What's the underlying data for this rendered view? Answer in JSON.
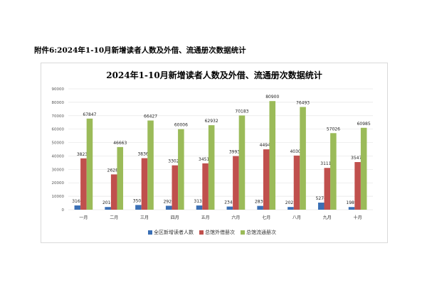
{
  "caption": "附件6:2024年1-10月新增读者人数及外借、流通册次数据统计",
  "chart_data": {
    "type": "bar",
    "title": "2024年1-10月新增读者人数及外借、流通册次数据统计",
    "categories": [
      "一月",
      "二月",
      "三月",
      "四月",
      "五月",
      "六月",
      "七月",
      "八月",
      "九月",
      "十月"
    ],
    "series": [
      {
        "name": "全区新增读者人数",
        "color": "#3a6fb5",
        "values": [
          3166,
          2010,
          3501,
          2920,
          3135,
          2341,
          2836,
          2023,
          5274,
          1989
        ]
      },
      {
        "name": "总馆外借册次",
        "color": "#c0504d",
        "values": [
          38238,
          26280,
          38363,
          33027,
          34518,
          39933,
          44949,
          40306,
          31110,
          35473
        ]
      },
      {
        "name": "总馆流通册次",
        "color": "#9bbb59",
        "values": [
          67847,
          46663,
          66427,
          60006,
          62932,
          70183,
          80900,
          76493,
          57026,
          60985
        ]
      }
    ],
    "ylim": [
      0,
      90000
    ],
    "yticks": [
      0,
      10000,
      20000,
      30000,
      40000,
      50000,
      60000,
      70000,
      80000,
      90000
    ],
    "grid": true,
    "legend": "bottom"
  }
}
